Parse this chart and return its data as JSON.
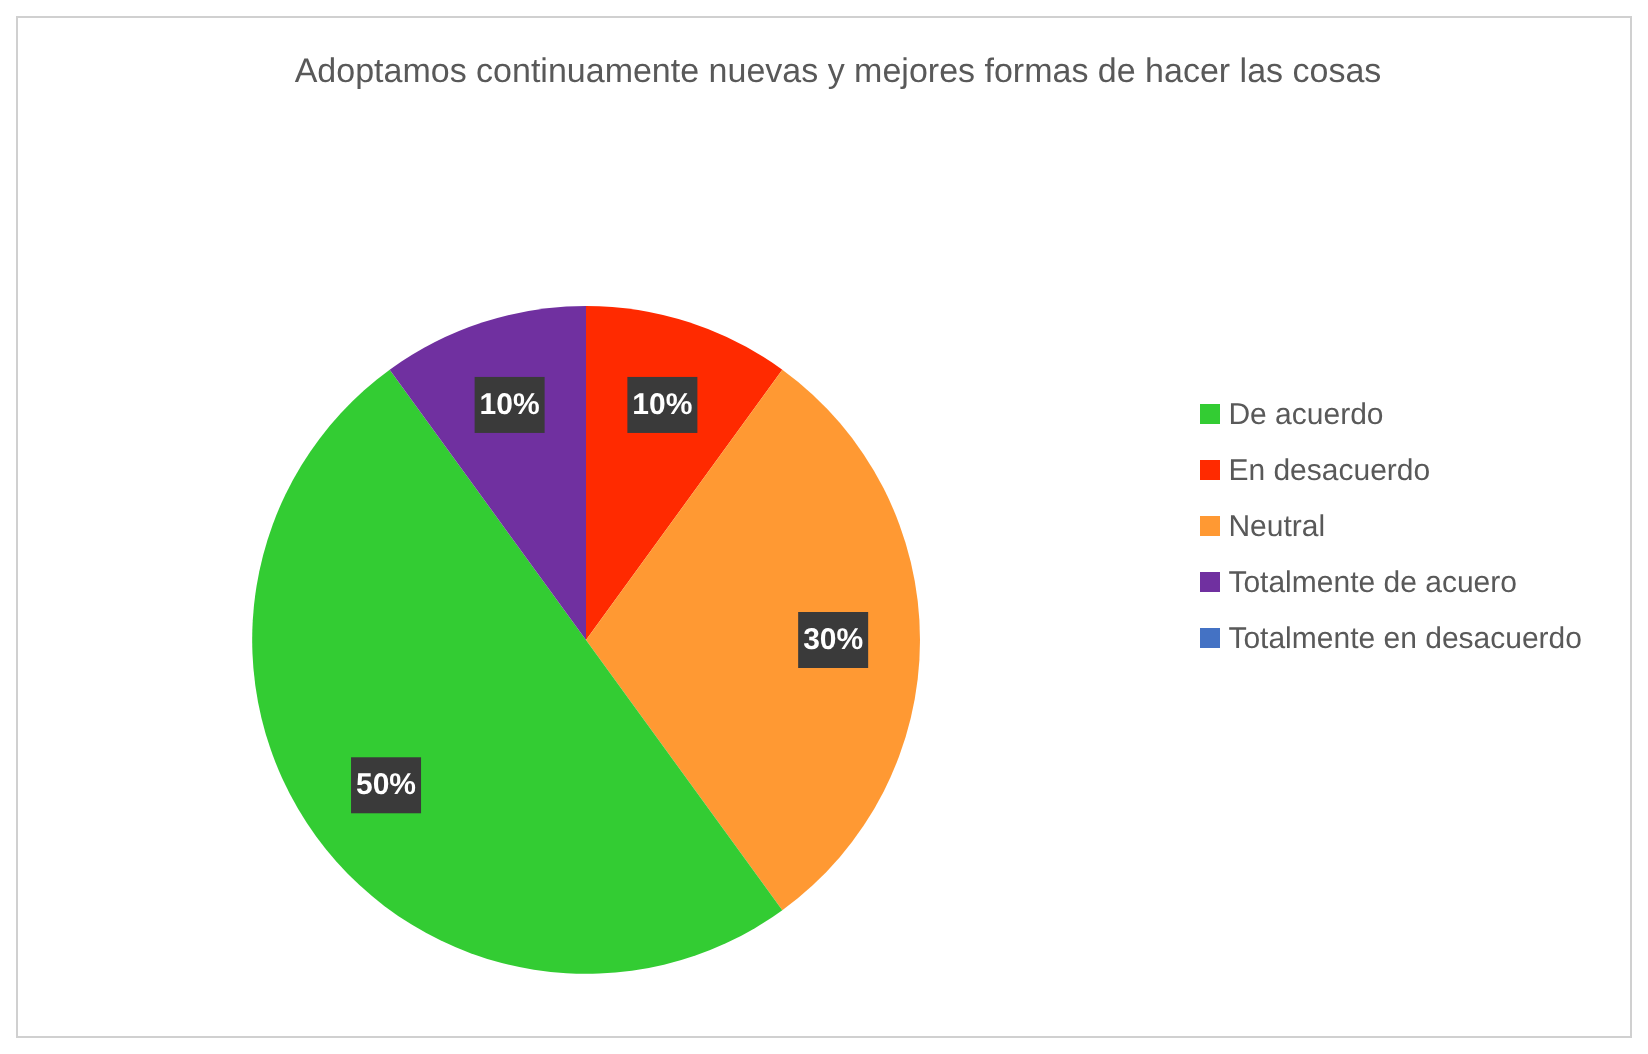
{
  "chart_data": {
    "type": "pie",
    "title": "Adoptamos continuamente nuevas y mejores formas de hacer las cosas",
    "categories": [
      "Totalmente en desacuerdo",
      "En desacuerdo",
      "Neutral",
      "De acuerdo",
      "Totalmente de acuero"
    ],
    "values": [
      0,
      10,
      30,
      50,
      10
    ],
    "colors": [
      "#4472c4",
      "#ff2a00",
      "#ff9933",
      "#33cc33",
      "#7030a0"
    ],
    "value_labels": [
      null,
      "10%",
      "30%",
      "50%",
      "10%"
    ],
    "legend": "right"
  }
}
